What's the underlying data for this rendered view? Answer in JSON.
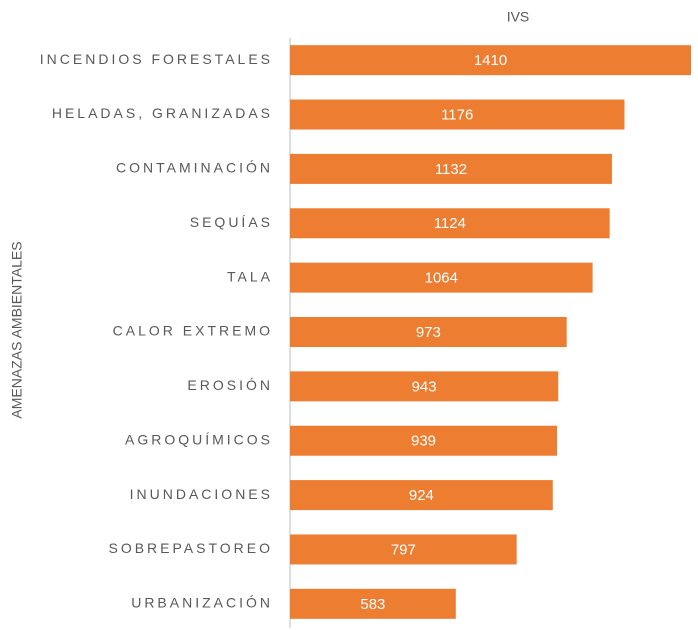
{
  "chart_data": {
    "type": "bar",
    "orientation": "horizontal",
    "title": "IVS",
    "y_label": "AMENAZAS AMBIENTALES",
    "categories": [
      "INCENDIOS FORESTALES",
      "HELADAS, GRANIZADAS",
      "CONTAMINACIÓN",
      "SEQUÍAS",
      "TALA",
      "CALOR EXTREMO",
      "EROSIÓN",
      "AGROQUÍMICOS",
      "INUNDACIONES",
      "SOBREPASTOREO",
      "URBANIZACIÓN"
    ],
    "values": [
      1410,
      1176,
      1132,
      1124,
      1064,
      973,
      943,
      939,
      924,
      797,
      583
    ],
    "color": "#ED7D31",
    "xlim": [
      0,
      1410
    ]
  }
}
